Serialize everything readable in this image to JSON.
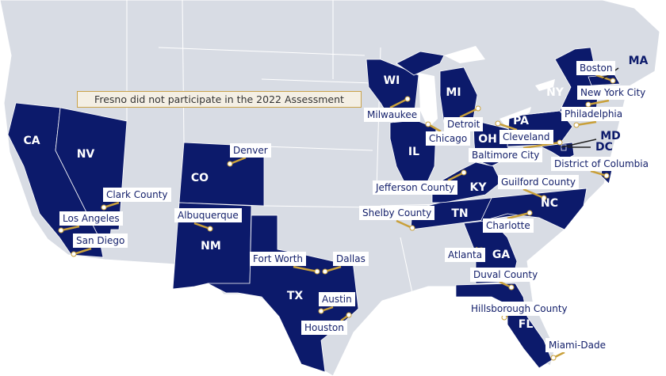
{
  "note": "Fresno did not participate in the 2022 Assessment",
  "colors": {
    "participating_state": "#0c1a6b",
    "non_participating_land": "#d8dce4",
    "water": "#ffffff",
    "leader_line": "#c9a03a"
  },
  "states": [
    "CA",
    "NV",
    "CO",
    "NM",
    "TX",
    "WI",
    "MI",
    "IL",
    "OH",
    "KY",
    "TN",
    "NC",
    "GA",
    "FL",
    "PA",
    "NY",
    "MA",
    "MD",
    "DC"
  ],
  "cities": [
    "Boston",
    "New York City",
    "Philadelphia",
    "Baltimore City",
    "District of Columbia",
    "Cleveland",
    "Detroit",
    "Chicago",
    "Milwaukee",
    "Jefferson County",
    "Guilford County",
    "Shelby County",
    "Charlotte",
    "Atlanta",
    "Duval County",
    "Hillsborough County",
    "Miami-Dade",
    "Denver",
    "Clark County",
    "Los Angeles",
    "San Diego",
    "Albuquerque",
    "Fort Worth",
    "Dallas",
    "Austin",
    "Houston"
  ]
}
